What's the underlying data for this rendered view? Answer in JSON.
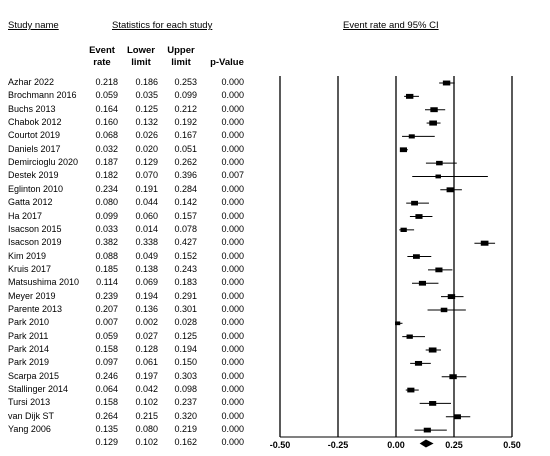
{
  "headers": {
    "study_name": "Study name",
    "stats": "Statistics for each study",
    "ci": "Event rate and 95% CI",
    "event_rate": [
      "Event",
      "rate"
    ],
    "lower_limit": [
      "Lower",
      "limit"
    ],
    "upper_limit": [
      "Upper",
      "limit"
    ],
    "p_value": "p-Value"
  },
  "chart_data": {
    "type": "forest",
    "xlim": [
      -0.5,
      0.5
    ],
    "x_ticks": [
      "-0.50",
      "-0.25",
      "0.00",
      "0.25",
      "0.50"
    ],
    "x_tick_values": [
      -0.5,
      -0.25,
      0,
      0.25,
      0.5
    ],
    "studies": [
      {
        "name": "Azhar 2022",
        "rate": "0.218",
        "lower": "0.186",
        "upper": "0.253",
        "p": "0.000",
        "weight": 0.8
      },
      {
        "name": "Brochmann 2016",
        "rate": "0.059",
        "lower": "0.035",
        "upper": "0.099",
        "p": "0.000",
        "weight": 0.8
      },
      {
        "name": "Buchs 2013",
        "rate": "0.164",
        "lower": "0.125",
        "upper": "0.212",
        "p": "0.000",
        "weight": 0.8
      },
      {
        "name": "Chabok 2012",
        "rate": "0.160",
        "lower": "0.132",
        "upper": "0.192",
        "p": "0.000",
        "weight": 0.85
      },
      {
        "name": "Courtot 2019",
        "rate": "0.068",
        "lower": "0.026",
        "upper": "0.167",
        "p": "0.000",
        "weight": 0.55
      },
      {
        "name": "Daniels 2017",
        "rate": "0.032",
        "lower": "0.020",
        "upper": "0.051",
        "p": "0.000",
        "weight": 0.75
      },
      {
        "name": "Demircioglu 2020",
        "rate": "0.187",
        "lower": "0.129",
        "upper": "0.262",
        "p": "0.000",
        "weight": 0.65
      },
      {
        "name": "Destek 2019",
        "rate": "0.182",
        "lower": "0.070",
        "upper": "0.396",
        "p": "0.007",
        "weight": 0.45
      },
      {
        "name": "Eglinton 2010",
        "rate": "0.234",
        "lower": "0.191",
        "upper": "0.284",
        "p": "0.000",
        "weight": 0.8
      },
      {
        "name": "Gatta 2012",
        "rate": "0.080",
        "lower": "0.044",
        "upper": "0.142",
        "p": "0.000",
        "weight": 0.7
      },
      {
        "name": "Ha 2017",
        "rate": "0.099",
        "lower": "0.060",
        "upper": "0.157",
        "p": "0.000",
        "weight": 0.75
      },
      {
        "name": "Isacson 2015",
        "rate": "0.033",
        "lower": "0.014",
        "upper": "0.078",
        "p": "0.000",
        "weight": 0.6
      },
      {
        "name": "Isacson 2019",
        "rate": "0.382",
        "lower": "0.338",
        "upper": "0.427",
        "p": "0.000",
        "weight": 0.85
      },
      {
        "name": "Kim 2019",
        "rate": "0.088",
        "lower": "0.049",
        "upper": "0.152",
        "p": "0.000",
        "weight": 0.7
      },
      {
        "name": "Kruis 2017",
        "rate": "0.185",
        "lower": "0.138",
        "upper": "0.243",
        "p": "0.000",
        "weight": 0.75
      },
      {
        "name": "Matsushima 2010",
        "rate": "0.114",
        "lower": "0.069",
        "upper": "0.183",
        "p": "0.000",
        "weight": 0.75
      },
      {
        "name": "Meyer 2019",
        "rate": "0.239",
        "lower": "0.194",
        "upper": "0.291",
        "p": "0.000",
        "weight": 0.8
      },
      {
        "name": "Parente 2013",
        "rate": "0.207",
        "lower": "0.136",
        "upper": "0.301",
        "p": "0.000",
        "weight": 0.65
      },
      {
        "name": "Park 2010",
        "rate": "0.007",
        "lower": "0.002",
        "upper": "0.028",
        "p": "0.000",
        "weight": 0.4
      },
      {
        "name": "Park 2011",
        "rate": "0.059",
        "lower": "0.027",
        "upper": "0.125",
        "p": "0.000",
        "weight": 0.6
      },
      {
        "name": "Park 2014",
        "rate": "0.158",
        "lower": "0.128",
        "upper": "0.194",
        "p": "0.000",
        "weight": 0.85
      },
      {
        "name": "Park 2019",
        "rate": "0.097",
        "lower": "0.061",
        "upper": "0.150",
        "p": "0.000",
        "weight": 0.75
      },
      {
        "name": "Scarpa 2015",
        "rate": "0.246",
        "lower": "0.197",
        "upper": "0.303",
        "p": "0.000",
        "weight": 0.8
      },
      {
        "name": "Stallinger 2014",
        "rate": "0.064",
        "lower": "0.042",
        "upper": "0.098",
        "p": "0.000",
        "weight": 0.75
      },
      {
        "name": "Tursi 2013",
        "rate": "0.158",
        "lower": "0.102",
        "upper": "0.237",
        "p": "0.000",
        "weight": 0.75
      },
      {
        "name": "van Dijk ST",
        "rate": "0.264",
        "lower": "0.215",
        "upper": "0.320",
        "p": "0.000",
        "weight": 0.8
      },
      {
        "name": "Yang 2006",
        "rate": "0.135",
        "lower": "0.080",
        "upper": "0.219",
        "p": "0.000",
        "weight": 0.75
      }
    ],
    "summary": {
      "name": "",
      "rate": "0.129",
      "lower": "0.102",
      "upper": "0.162",
      "p": "0.000"
    }
  }
}
